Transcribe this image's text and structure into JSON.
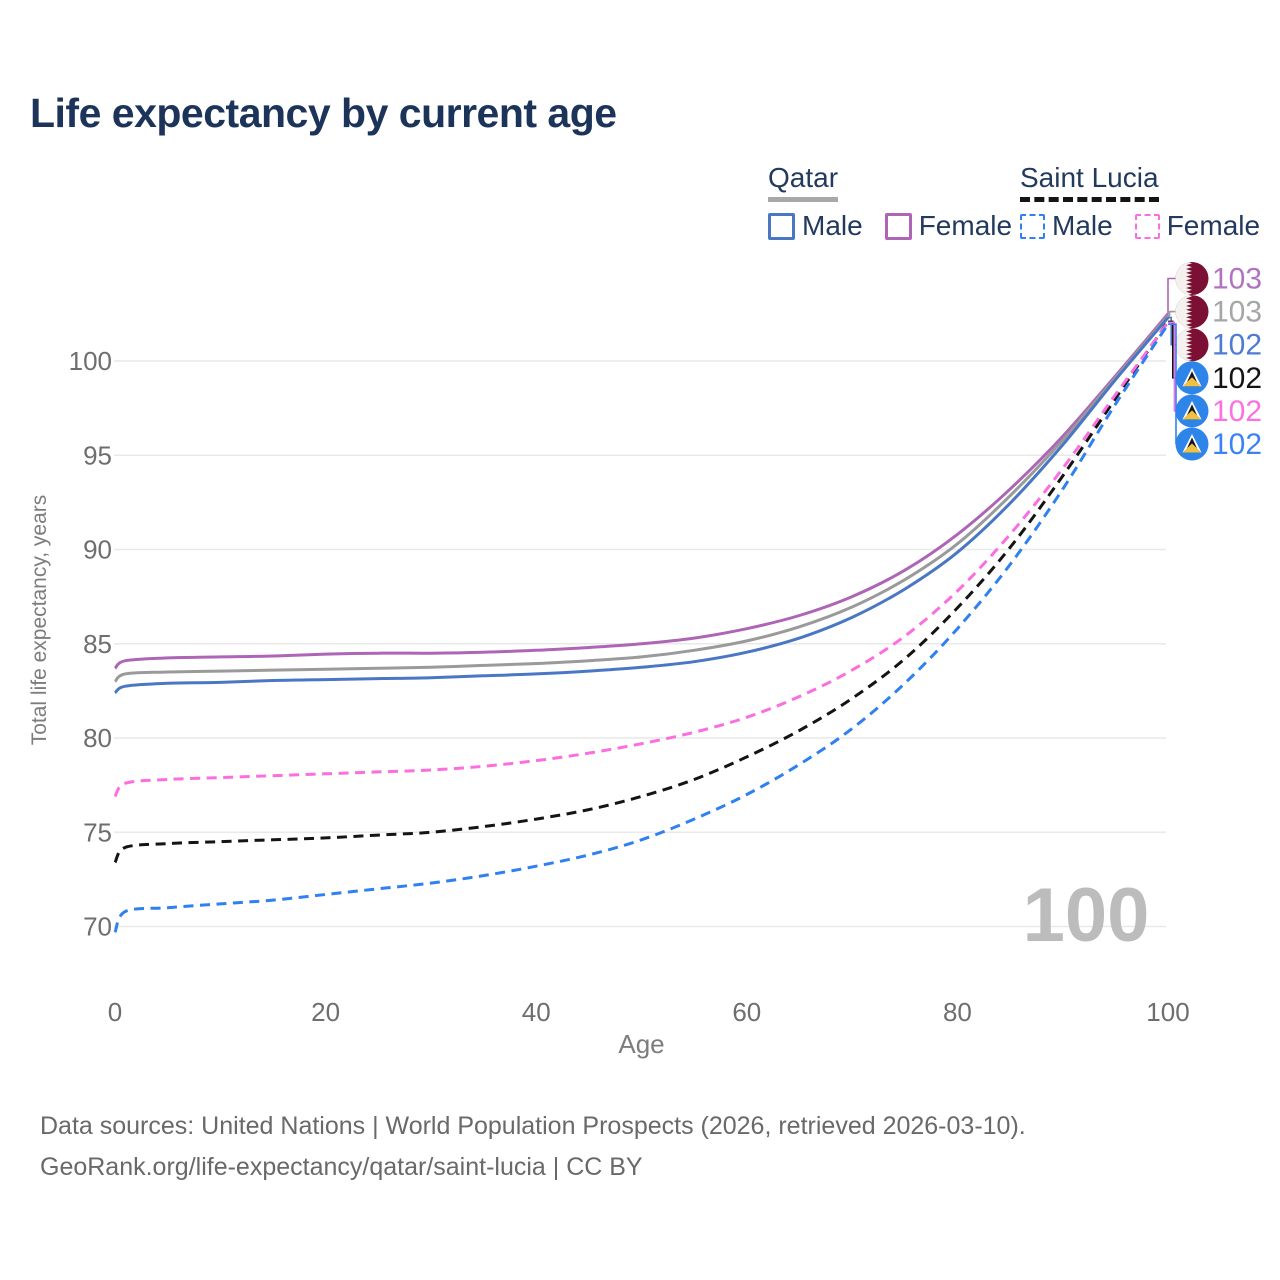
{
  "title": "Life expectancy by current age",
  "legend": {
    "qatar": {
      "label": "Qatar",
      "male": "Male",
      "female": "Female"
    },
    "saint_lucia": {
      "label": "Saint Lucia",
      "male": "Male",
      "female": "Female"
    }
  },
  "watermark_hover_age": "100",
  "footer": {
    "line1": "Data sources: United Nations | World Population Prospects (2026, retrieved 2026-03-10).",
    "line2": "GeoRank.org/life-expectancy/qatar/saint-lucia | CC BY"
  },
  "chart_data": {
    "type": "line",
    "title": "Life expectancy by current age",
    "xlabel": "Age",
    "ylabel": "Total life expectancy, years",
    "x_ticks": [
      0,
      20,
      40,
      60,
      80,
      100
    ],
    "y_ticks": [
      70,
      75,
      80,
      85,
      90,
      95,
      100
    ],
    "xlim": [
      0,
      100
    ],
    "ylim": [
      68,
      104
    ],
    "grid": "horizontal",
    "legend_position": "top-right",
    "ages": [
      0,
      1,
      5,
      10,
      15,
      20,
      25,
      30,
      35,
      40,
      45,
      50,
      55,
      60,
      65,
      70,
      75,
      80,
      85,
      90,
      95,
      100
    ],
    "series": [
      {
        "id": "qatar-female",
        "country": "Qatar",
        "sex": "Female",
        "style": "solid",
        "color": "#ae65b5",
        "end_label": "103",
        "end_label_color": "#b173c1",
        "flag": "qatar",
        "values": [
          83.7,
          84.1,
          84.25,
          84.3,
          84.35,
          84.45,
          84.5,
          84.5,
          84.55,
          84.65,
          84.8,
          85.0,
          85.3,
          85.8,
          86.5,
          87.5,
          88.9,
          90.8,
          93.2,
          96.0,
          99.2,
          102.5
        ]
      },
      {
        "id": "qatar-total",
        "country": "Qatar",
        "sex": "Both",
        "style": "solid",
        "color": "#9a9a9a",
        "end_label": "103",
        "end_label_color": "#a6a6a6",
        "flag": "qatar",
        "values": [
          83.0,
          83.4,
          83.5,
          83.55,
          83.6,
          83.65,
          83.7,
          83.75,
          83.85,
          83.95,
          84.1,
          84.3,
          84.65,
          85.15,
          85.9,
          86.95,
          88.4,
          90.3,
          92.85,
          95.8,
          99.1,
          102.4
        ]
      },
      {
        "id": "qatar-male",
        "country": "Qatar",
        "sex": "Male",
        "style": "solid",
        "color": "#4a77c4",
        "end_label": "102",
        "end_label_color": "#4d7cd2",
        "flag": "qatar",
        "values": [
          82.4,
          82.75,
          82.9,
          82.95,
          83.05,
          83.1,
          83.15,
          83.2,
          83.3,
          83.4,
          83.55,
          83.75,
          84.05,
          84.55,
          85.3,
          86.4,
          87.9,
          89.85,
          92.45,
          95.55,
          99.0,
          102.3
        ]
      },
      {
        "id": "saint-lucia-total",
        "country": "Saint Lucia",
        "sex": "Both",
        "style": "dashed",
        "color": "#141414",
        "end_label": "102",
        "end_label_color": "#141414",
        "flag": "saint_lucia",
        "values": [
          73.4,
          74.2,
          74.4,
          74.5,
          74.6,
          74.7,
          74.85,
          75.0,
          75.3,
          75.7,
          76.2,
          76.9,
          77.8,
          79.0,
          80.4,
          82.1,
          84.2,
          86.9,
          90.1,
          93.9,
          98.0,
          102.1
        ]
      },
      {
        "id": "saint-lucia-female",
        "country": "Saint Lucia",
        "sex": "Female",
        "style": "dashed",
        "color": "#fc6ee0",
        "end_label": "102",
        "end_label_color": "#fb70e2",
        "flag": "saint_lucia",
        "values": [
          76.9,
          77.6,
          77.8,
          77.9,
          78.0,
          78.1,
          78.2,
          78.3,
          78.5,
          78.8,
          79.2,
          79.7,
          80.3,
          81.1,
          82.2,
          83.6,
          85.4,
          87.8,
          90.8,
          94.3,
          98.2,
          102.05
        ]
      },
      {
        "id": "saint-lucia-male",
        "country": "Saint Lucia",
        "sex": "Male",
        "style": "dashed",
        "color": "#2f80f0",
        "end_label": "102",
        "end_label_color": "#3b82f6",
        "flag": "saint_lucia",
        "values": [
          69.7,
          70.8,
          71.0,
          71.2,
          71.4,
          71.7,
          72.0,
          72.3,
          72.7,
          73.2,
          73.8,
          74.6,
          75.7,
          77.0,
          78.6,
          80.5,
          82.9,
          85.8,
          89.2,
          93.2,
          97.7,
          101.95
        ]
      }
    ],
    "end_labels_top_to_bottom": [
      "103",
      "103",
      "102",
      "102",
      "102",
      "102"
    ],
    "colors": {
      "grid": "#e9e9e9",
      "tick_text": "#6e6e6e",
      "axis_title": "#7d7d7d",
      "watermark": "#bcbcbc",
      "title_text": "#1c345a",
      "legend_text": "#233a5e",
      "qatar_flag_maroon": "#7c1034",
      "saint_lucia_flag_blue": "#2e85e9",
      "saint_lucia_flag_yellow": "#f0c040"
    }
  }
}
